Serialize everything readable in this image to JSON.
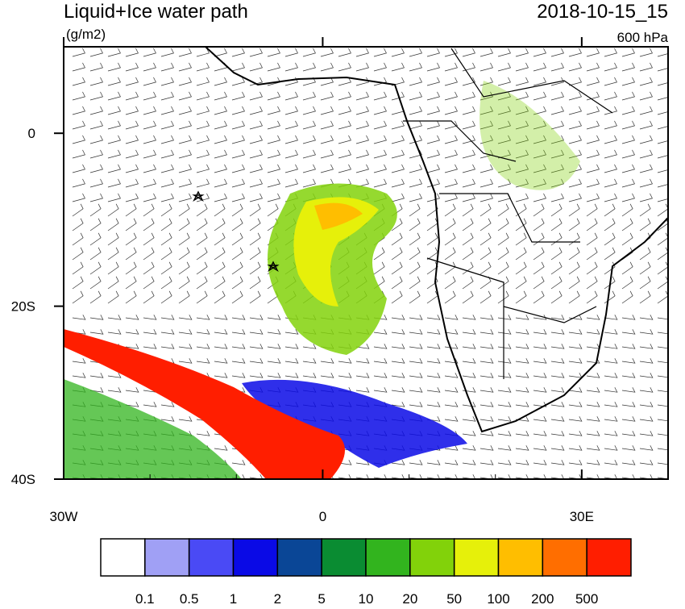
{
  "header": {
    "title": "Liquid+Ice water path",
    "units": "(g/m2)",
    "date": "2018-10-15_15",
    "level": "600 hPa"
  },
  "map": {
    "lon_ticks": [
      {
        "value": -30,
        "label": "30W"
      },
      {
        "value": 0,
        "label": "0"
      },
      {
        "value": 30,
        "label": "30E"
      }
    ],
    "lat_ticks": [
      {
        "value": 0,
        "label": "0"
      },
      {
        "value": -20,
        "label": "20S"
      },
      {
        "value": -40,
        "label": "40S"
      }
    ],
    "lon_range": [
      -30,
      40
    ],
    "lat_range": [
      10,
      -40
    ]
  },
  "colorbar": {
    "colors": [
      "#ffffff",
      "#a0a0f5",
      "#4a4af5",
      "#0a0ae6",
      "#0a4696",
      "#0a8c32",
      "#32b41e",
      "#82d20a",
      "#e6f00a",
      "#ffbe00",
      "#ff6e00",
      "#ff1e00"
    ],
    "labels": [
      "0.1",
      "0.5",
      "1",
      "2",
      "5",
      "10",
      "20",
      "50",
      "100",
      "200",
      "500"
    ]
  }
}
